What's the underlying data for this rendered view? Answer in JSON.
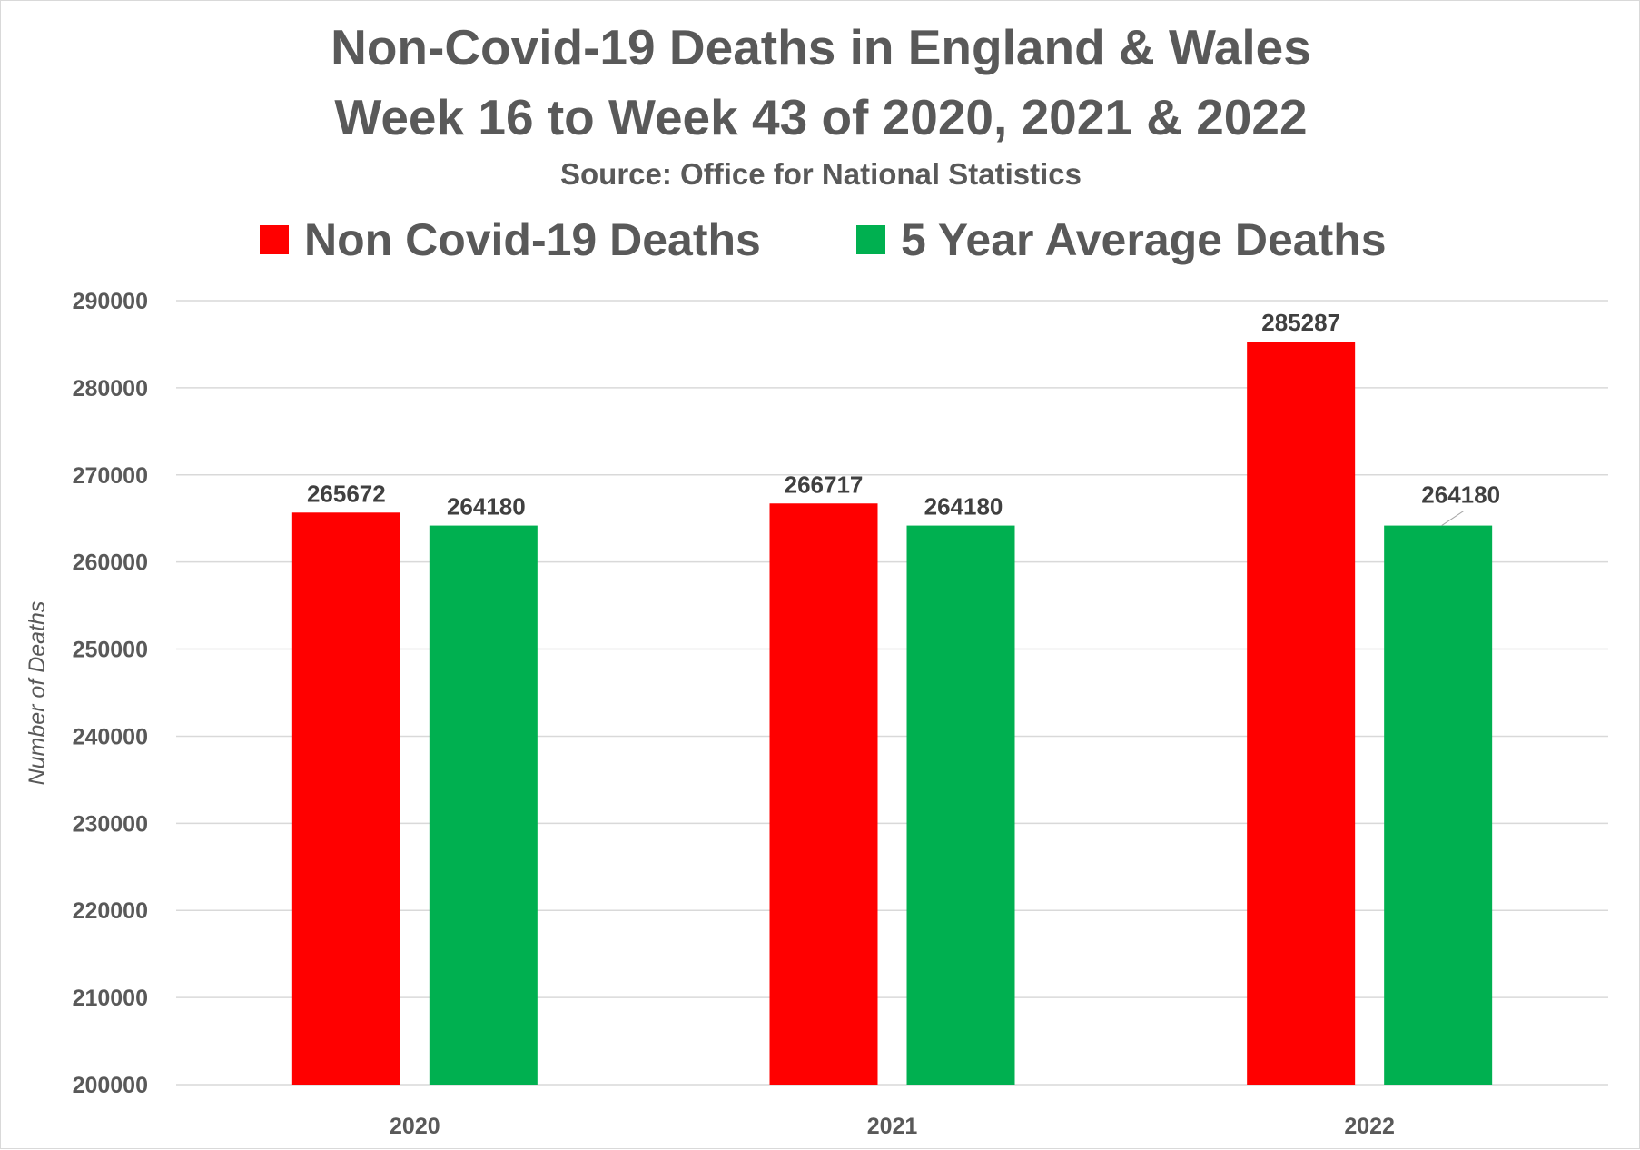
{
  "chart_data": {
    "type": "bar",
    "title": "Non-Covid-19 Deaths in England & Wales",
    "title_line2": "Week 16 to Week 43 of 2020, 2021 & 2022",
    "subtitle": "Source: Office for National Statistics",
    "xlabel": "",
    "ylabel": "Number of Deaths",
    "categories": [
      "2020",
      "2021",
      "2022"
    ],
    "series": [
      {
        "name": "Non Covid-19 Deaths",
        "color": "#ff0000",
        "values": [
          265672,
          266717,
          285287
        ]
      },
      {
        "name": "5 Year Average Deaths",
        "color": "#00b050",
        "values": [
          264180,
          264180,
          264180
        ]
      }
    ],
    "ylim": [
      200000,
      290000
    ],
    "yticks": [
      200000,
      210000,
      220000,
      230000,
      240000,
      250000,
      260000,
      270000,
      280000,
      290000
    ],
    "grid": true,
    "legend_position": "top",
    "data_labels": true
  }
}
